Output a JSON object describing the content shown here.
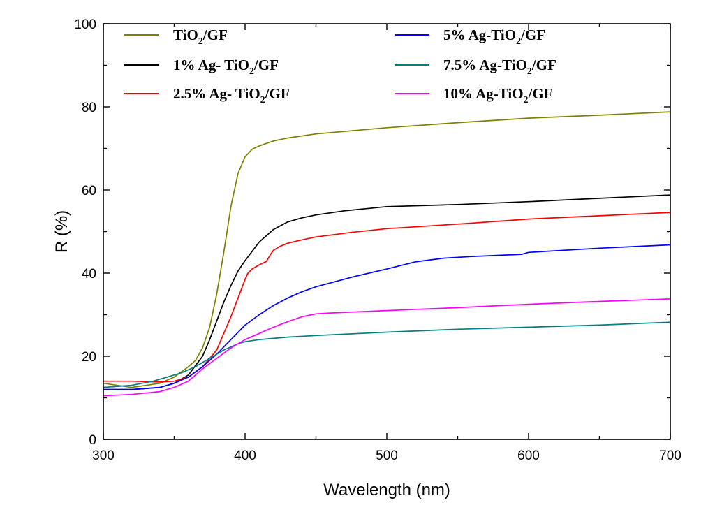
{
  "chart_data": {
    "type": "line",
    "title": "",
    "xlabel": "Wavelength (nm)",
    "ylabel": "R (%)",
    "xlim": [
      300,
      700
    ],
    "ylim": [
      0,
      100
    ],
    "xticks": [
      300,
      400,
      500,
      600,
      700
    ],
    "xtick_labels": [
      "300",
      "400",
      "500",
      "600",
      "700"
    ],
    "yticks": [
      0,
      20,
      40,
      60,
      80,
      100
    ],
    "ytick_labels": [
      "0",
      "20",
      "40",
      "60",
      "80",
      "100"
    ],
    "grid": false,
    "legend_position": "top",
    "series": [
      {
        "name": "TiO2/GF",
        "label_parts": [
          "TiO",
          "2",
          "/GF"
        ],
        "color": "#808000",
        "x": [
          300,
          320,
          340,
          350,
          360,
          365,
          370,
          375,
          380,
          385,
          390,
          395,
          400,
          405,
          410,
          420,
          430,
          450,
          500,
          550,
          600,
          650,
          700
        ],
        "y": [
          13.5,
          12.5,
          13.5,
          15.0,
          17.5,
          19.0,
          22.0,
          27.0,
          35.0,
          45.0,
          56.0,
          64.0,
          68.0,
          69.8,
          70.6,
          71.8,
          72.5,
          73.5,
          75.0,
          76.2,
          77.3,
          78.0,
          78.8
        ]
      },
      {
        "name": "1% Ag- TiO2/GF",
        "label_parts": [
          "1% Ag- TiO",
          "2",
          "/GF"
        ],
        "color": "#000000",
        "x": [
          300,
          320,
          340,
          350,
          360,
          370,
          375,
          380,
          385,
          390,
          395,
          400,
          410,
          420,
          430,
          440,
          450,
          470,
          500,
          550,
          600,
          650,
          700
        ],
        "y": [
          12.0,
          12.0,
          12.5,
          13.5,
          15.5,
          20.0,
          24.0,
          28.5,
          33.0,
          37.0,
          40.5,
          43.0,
          47.5,
          50.5,
          52.3,
          53.3,
          54.0,
          55.0,
          56.0,
          56.5,
          57.2,
          58.0,
          58.8
        ]
      },
      {
        "name": "2.5% Ag- TiO2/GF",
        "label_parts": [
          "2.5% Ag- TiO",
          "2",
          "/GF"
        ],
        "color": "#ff0000",
        "x": [
          300,
          320,
          340,
          350,
          360,
          370,
          380,
          385,
          390,
          395,
          400,
          402,
          405,
          410,
          415,
          418,
          420,
          425,
          430,
          440,
          450,
          475,
          500,
          550,
          600,
          650,
          700
        ],
        "y": [
          14.0,
          14.0,
          13.8,
          14.0,
          15.0,
          17.5,
          21.5,
          25.5,
          29.5,
          34.0,
          38.5,
          40.0,
          41.0,
          42.0,
          42.8,
          44.5,
          45.5,
          46.5,
          47.2,
          48.0,
          48.7,
          49.8,
          50.7,
          51.8,
          53.0,
          53.8,
          54.6
        ]
      },
      {
        "name": "5% Ag-TiO2/GF",
        "label_parts": [
          "5% Ag-TiO",
          "2",
          "/GF"
        ],
        "color": "#0000ff",
        "x": [
          300,
          320,
          340,
          350,
          360,
          370,
          380,
          390,
          400,
          410,
          420,
          430,
          440,
          450,
          475,
          500,
          520,
          540,
          560,
          580,
          595,
          600,
          650,
          700
        ],
        "y": [
          12.0,
          12.0,
          12.5,
          13.5,
          15.0,
          17.5,
          20.5,
          24.0,
          27.5,
          30.0,
          32.2,
          34.0,
          35.5,
          36.7,
          39.0,
          41.0,
          42.7,
          43.6,
          44.0,
          44.3,
          44.5,
          45.0,
          46.0,
          46.8
        ]
      },
      {
        "name": "7.5% Ag-TiO2/GF",
        "label_parts": [
          "7.5% Ag-TiO",
          "2",
          "/GF"
        ],
        "color": "#008080",
        "x": [
          300,
          320,
          335,
          345,
          355,
          365,
          375,
          385,
          395,
          400,
          410,
          420,
          430,
          450,
          500,
          550,
          600,
          650,
          700
        ],
        "y": [
          12.5,
          13.0,
          14.0,
          15.0,
          16.0,
          17.5,
          19.5,
          21.5,
          23.0,
          23.5,
          24.0,
          24.3,
          24.6,
          25.0,
          25.8,
          26.5,
          27.0,
          27.5,
          28.2
        ]
      },
      {
        "name": "10% Ag-TiO2/GF",
        "label_parts": [
          "10% Ag-TiO",
          "2",
          "/GF"
        ],
        "color": "#ff00ff",
        "x": [
          300,
          320,
          340,
          350,
          360,
          365,
          370,
          380,
          390,
          400,
          410,
          420,
          430,
          440,
          450,
          460,
          500,
          550,
          600,
          650,
          700
        ],
        "y": [
          10.5,
          10.8,
          11.5,
          12.5,
          14.0,
          15.5,
          17.0,
          19.5,
          22.0,
          24.0,
          25.5,
          27.0,
          28.3,
          29.5,
          30.2,
          30.4,
          31.0,
          31.7,
          32.5,
          33.2,
          33.8
        ]
      }
    ]
  }
}
